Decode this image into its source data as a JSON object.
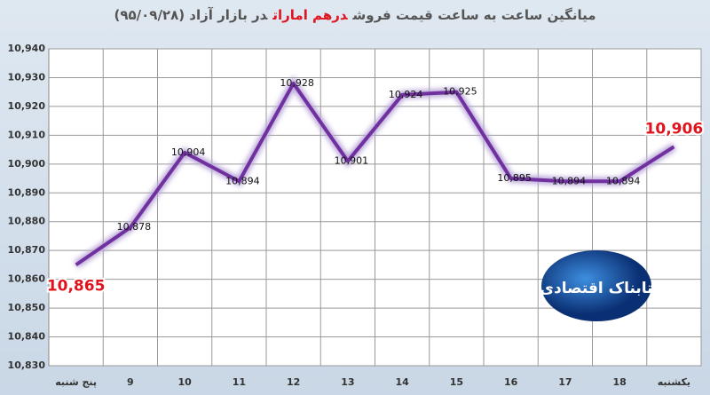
{
  "chart_data": {
    "type": "line",
    "title": [
      "میانگین ساعت به ساعت قیمت فروش",
      "درهم امارات",
      "در بازار آزاد (۹۵/۰۹/۲۸)"
    ],
    "categories": [
      "پنج شنبه",
      "9",
      "10",
      "11",
      "12",
      "13",
      "14",
      "15",
      "16",
      "17",
      "18",
      "یکشنبه"
    ],
    "series": [
      {
        "color": "#7030a0",
        "values": [
          10865,
          10878,
          10904,
          10894,
          10928,
          10901,
          10924,
          10925,
          10895,
          10894,
          10894,
          10906
        ],
        "value_labels": [
          "10,865",
          "10,878",
          "10,904",
          "10,894",
          "10,928",
          "10,901",
          "10,924",
          "10,925",
          "10,895",
          "10,894",
          "10,894",
          "10,906"
        ]
      }
    ],
    "ylim": [
      10830,
      10940
    ],
    "yticks": [
      {
        "value": 10830,
        "label": "10,830"
      },
      {
        "value": 10840,
        "label": "10,840"
      },
      {
        "value": 10850,
        "label": "10,850"
      },
      {
        "value": 10860,
        "label": "10,860"
      },
      {
        "value": 10870,
        "label": "10,870"
      },
      {
        "value": 10880,
        "label": "10,880"
      },
      {
        "value": 10890,
        "label": "10,890"
      },
      {
        "value": 10900,
        "label": "10,900"
      },
      {
        "value": 10910,
        "label": "10,910"
      },
      {
        "value": 10920,
        "label": "10,920"
      },
      {
        "value": 10930,
        "label": "10,930"
      },
      {
        "value": 10940,
        "label": "10,940"
      }
    ],
    "grid": true
  },
  "logo": "تابناک اقتصادی"
}
